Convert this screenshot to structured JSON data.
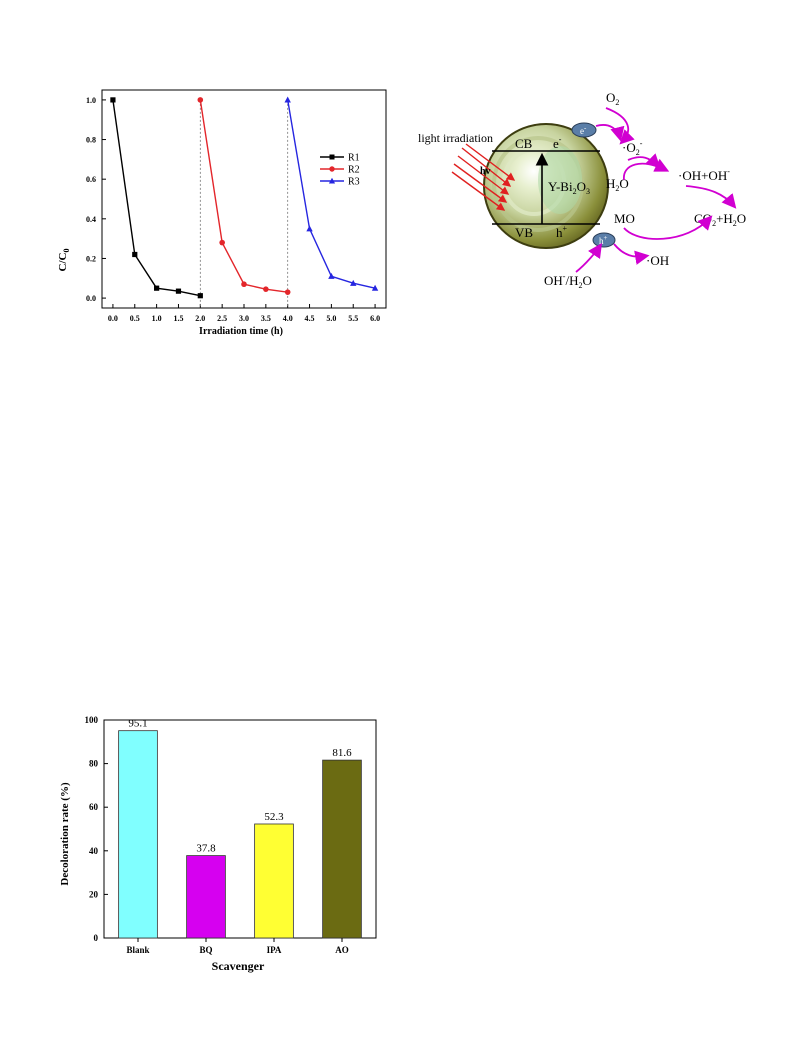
{
  "chart_data": [
    {
      "type": "line",
      "title": "",
      "xlabel": "Irradiation time (h)",
      "ylabel": "C/C",
      "ylabel_sub": "0",
      "xlim": [
        -0.25,
        6.25
      ],
      "ylim": [
        -0.05,
        1.05
      ],
      "x_ticks": [
        "0.0",
        "0.5",
        "1.0",
        "1.5",
        "2.0",
        "2.5",
        "3.0",
        "3.5",
        "4.0",
        "4.5",
        "5.0",
        "5.5",
        "6.0"
      ],
      "y_ticks": [
        "0.0",
        "0.2",
        "0.4",
        "0.6",
        "0.8",
        "1.0"
      ],
      "grid": false,
      "legend_position": "right",
      "cycle_dividers": [
        2.0,
        4.0
      ],
      "series": [
        {
          "name": "R1",
          "color": "#000000",
          "marker": "square",
          "x": [
            0.0,
            0.5,
            1.0,
            1.5,
            2.0
          ],
          "y": [
            1.0,
            0.22,
            0.05,
            0.035,
            0.012
          ]
        },
        {
          "name": "R2",
          "color": "#e3262b",
          "marker": "circle",
          "x": [
            2.0,
            2.5,
            3.0,
            3.5,
            4.0
          ],
          "y": [
            1.0,
            0.28,
            0.07,
            0.045,
            0.03
          ]
        },
        {
          "name": "R3",
          "color": "#2626e0",
          "marker": "triangle",
          "x": [
            4.0,
            4.5,
            5.0,
            5.5,
            6.0
          ],
          "y": [
            1.0,
            0.35,
            0.11,
            0.075,
            0.05
          ]
        }
      ]
    },
    {
      "type": "bar",
      "title": "",
      "xlabel": "Scavenger",
      "ylabel": "Decoloration rate (%)",
      "ylim": [
        0,
        100
      ],
      "y_ticks": [
        "0",
        "20",
        "40",
        "60",
        "80",
        "100"
      ],
      "grid": false,
      "categories": [
        "Blank",
        "BQ",
        "IPA",
        "AO"
      ],
      "values": [
        95.1,
        37.8,
        52.3,
        81.6
      ],
      "value_labels": [
        "95.1",
        "37.8",
        "52.3",
        "81.6"
      ],
      "colors": [
        "#80ffff",
        "#d600f0",
        "#ffff33",
        "#6b6b12"
      ]
    }
  ],
  "diagram": {
    "light_label": "light irradiation",
    "hv_label": "hv",
    "cb_label": "CB",
    "vb_label": "VB",
    "material_label": "Y-Bi",
    "material_sub1": "2",
    "material_mid": "O",
    "material_sub2": "3",
    "electron_label": "e",
    "electron_sup": "-",
    "hole_label": "h",
    "hole_sup": "+",
    "e_bubble": "e",
    "e_bubble_sup": "-",
    "h_bubble": "h",
    "h_bubble_sup": "+",
    "o2_main": "O",
    "o2_sub": "2",
    "superoxide_prefix": "·O",
    "superoxide_sub": "2",
    "superoxide_sup": "-",
    "water_main": "H",
    "water_sub": "2",
    "water_end": "O",
    "hydroxyl_pair": "·OH+OH",
    "hydroxyl_pair_sup": "-",
    "mo_label": "MO",
    "products_prefix": "CO",
    "products_sub1": "2",
    "products_mid": "+H",
    "products_sub2": "2",
    "products_end": "O",
    "hydroxyl_label": "·OH",
    "reactant_prefix": "OH",
    "reactant_sup": "-",
    "reactant_mid": "/H",
    "reactant_sub": "2",
    "reactant_end": "O"
  }
}
